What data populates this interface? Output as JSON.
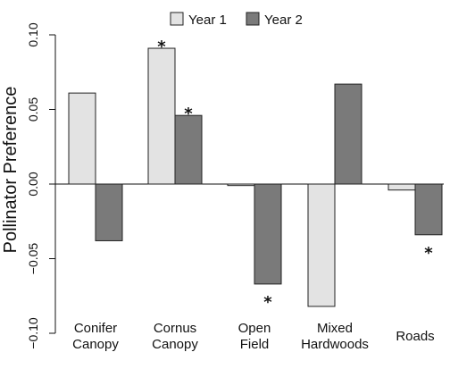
{
  "chart_data": {
    "type": "bar",
    "title": "",
    "xlabel": "",
    "ylabel": "Pollinator Preference",
    "ylim": [
      -0.1,
      0.1
    ],
    "yticks": [
      "-0.10",
      "-0.05",
      "0.00",
      "0.05",
      "0.10"
    ],
    "grid": false,
    "legend_position": "top",
    "categories": [
      [
        "Conifer",
        "Canopy"
      ],
      [
        "Cornus",
        "Canopy"
      ],
      [
        "Open",
        "Field"
      ],
      [
        "Mixed",
        "Hardwoods"
      ],
      [
        "Roads"
      ]
    ],
    "series": [
      {
        "name": "Year 1",
        "color": "#e3e3e3",
        "values": [
          0.061,
          0.091,
          -0.001,
          -0.082,
          -0.004
        ],
        "significant": [
          false,
          true,
          false,
          false,
          false
        ]
      },
      {
        "name": "Year 2",
        "color": "#7a7a7a",
        "values": [
          -0.038,
          0.046,
          -0.067,
          0.067,
          -0.034
        ],
        "significant": [
          false,
          true,
          true,
          false,
          true
        ]
      }
    ],
    "significance_marker": "*"
  }
}
